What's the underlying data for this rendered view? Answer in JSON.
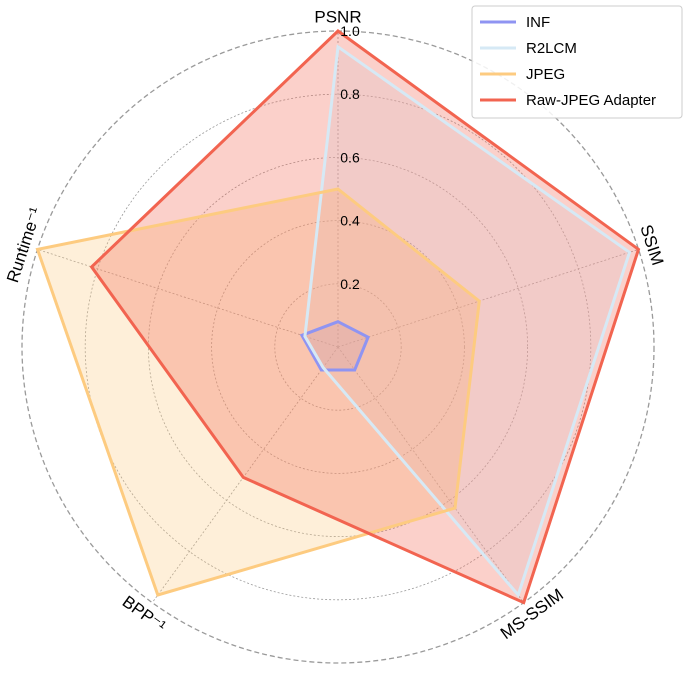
{
  "chart_data": {
    "type": "radar",
    "axes": [
      "PSNR",
      "SSIM",
      "MS-SSIM",
      "BPP⁻¹",
      "Runtime⁻¹"
    ],
    "ticks": [
      "0.2",
      "0.4",
      "0.6",
      "0.8",
      "1.0"
    ],
    "tick_values": [
      0.2,
      0.4,
      0.6,
      0.8,
      1.0
    ],
    "rlim": [
      0,
      1.0
    ],
    "grid": true,
    "legend_position": "top-right",
    "series": [
      {
        "name": "INF",
        "values": [
          0.08,
          0.1,
          0.09,
          0.09,
          0.12
        ],
        "color": "#8f94f2"
      },
      {
        "name": "R2LCM",
        "values": [
          0.95,
          0.97,
          0.97,
          0.08,
          0.11
        ],
        "color": "#d6e9f5"
      },
      {
        "name": "JPEG",
        "values": [
          0.5,
          0.47,
          0.63,
          0.97,
          1.0
        ],
        "color": "#fdcb80"
      },
      {
        "name": "Raw-JPEG Adapter",
        "values": [
          1.0,
          1.0,
          1.0,
          0.51,
          0.82
        ],
        "color": "#f26450"
      }
    ]
  }
}
